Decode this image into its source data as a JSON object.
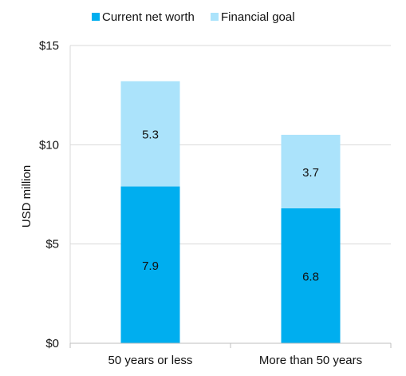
{
  "chart_data": {
    "type": "bar",
    "stacked": true,
    "categories": [
      "50 years or less",
      "More than 50 years"
    ],
    "series": [
      {
        "name": "Current net worth",
        "values": [
          7.9,
          6.8
        ],
        "labels": [
          "7.9",
          "6.8"
        ],
        "color": "#00aeef"
      },
      {
        "name": "Financial goal",
        "values": [
          5.3,
          3.7
        ],
        "labels": [
          "5.3",
          "3.7"
        ],
        "color": "#abe3fb"
      }
    ],
    "ylabel": "USD million",
    "xlabel": "",
    "ylim": [
      0,
      15
    ],
    "yticks": [
      0,
      5,
      10,
      15
    ],
    "ytick_labels": [
      "$0",
      "$5",
      "$10",
      "$15"
    ],
    "grid": true,
    "legend_position": "top"
  }
}
